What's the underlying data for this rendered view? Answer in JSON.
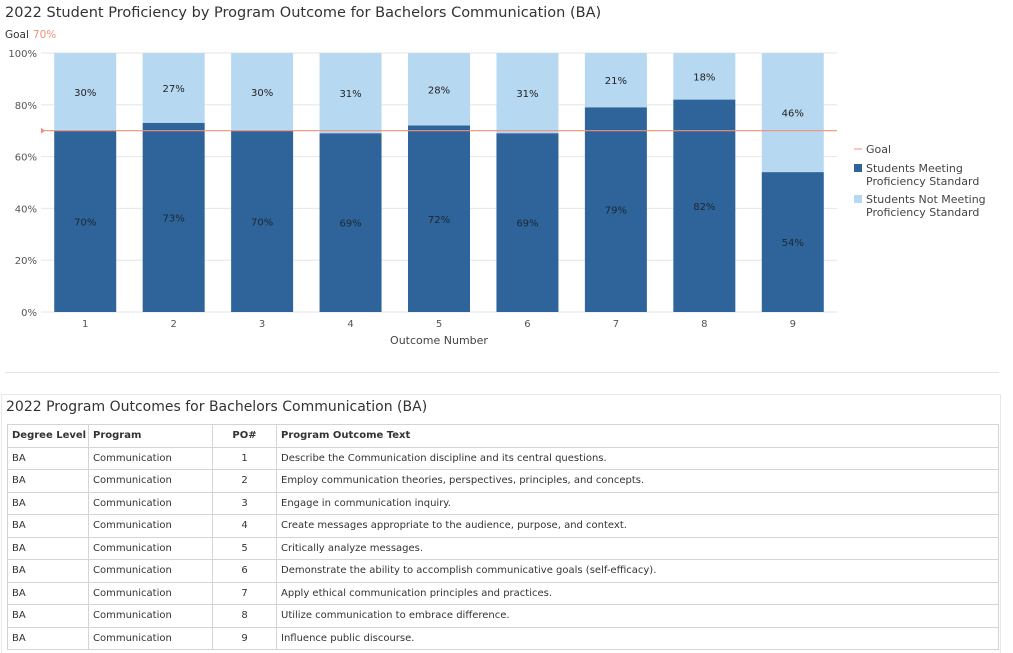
{
  "chart_data": {
    "type": "bar",
    "stacked": true,
    "title": "2022 Student Proficiency by Program Outcome for Bachelors Communication (BA)",
    "goal_label": "Goal",
    "goal_value_text": "70%",
    "goal": 70,
    "categories": [
      "1",
      "2",
      "3",
      "4",
      "5",
      "6",
      "7",
      "8",
      "9"
    ],
    "xlabel": "Outcome Number",
    "ylabel": "",
    "ylim": [
      0,
      100
    ],
    "yticks": [
      "0%",
      "20%",
      "40%",
      "60%",
      "80%",
      "100%"
    ],
    "series": [
      {
        "name": "Students Meeting Proficiency Standard",
        "values": [
          70,
          73,
          70,
          69,
          72,
          69,
          79,
          82,
          54
        ],
        "labels": [
          "70%",
          "73%",
          "70%",
          "69%",
          "72%",
          "69%",
          "79%",
          "82%",
          "54%"
        ],
        "color": "#2e6499"
      },
      {
        "name": "Students Not Meeting Proficiency Standard",
        "values": [
          30,
          27,
          30,
          31,
          28,
          31,
          21,
          18,
          46
        ],
        "labels": [
          "30%",
          "27%",
          "30%",
          "31%",
          "28%",
          "31%",
          "21%",
          "18%",
          "46%"
        ],
        "color": "#b7d8f1"
      }
    ],
    "goal_color": "#f0907a",
    "legend": [
      {
        "lines": [
          "Goal"
        ],
        "kind": "line"
      },
      {
        "lines": [
          "Students Meeting",
          "Proficiency Standard"
        ],
        "kind": "box",
        "color": "#2e6499"
      },
      {
        "lines": [
          "Students Not Meeting",
          "Proficiency Standard"
        ],
        "kind": "box",
        "color": "#b7d8f1"
      }
    ],
    "legend_position": "right",
    "grid": true
  },
  "table": {
    "title": "2022 Program Outcomes for Bachelors Communication (BA)",
    "headers": [
      "Degree Level",
      "Program",
      "PO#",
      "Program Outcome Text"
    ],
    "rows": [
      [
        "BA",
        "Communication",
        "1",
        "Describe the Communication discipline and its central questions."
      ],
      [
        "BA",
        "Communication",
        "2",
        "Employ communication theories, perspectives, principles, and concepts."
      ],
      [
        "BA",
        "Communication",
        "3",
        "Engage in communication inquiry."
      ],
      [
        "BA",
        "Communication",
        "4",
        "Create messages appropriate to the audience, purpose, and context."
      ],
      [
        "BA",
        "Communication",
        "5",
        "Critically analyze messages."
      ],
      [
        "BA",
        "Communication",
        "6",
        "Demonstrate the ability to accomplish communicative goals (self-efficacy)."
      ],
      [
        "BA",
        "Communication",
        "7",
        "Apply ethical communication principles and practices."
      ],
      [
        "BA",
        "Communication",
        "8",
        "Utilize communication to embrace difference."
      ],
      [
        "BA",
        "Communication",
        "9",
        "Influence public discourse."
      ]
    ]
  }
}
